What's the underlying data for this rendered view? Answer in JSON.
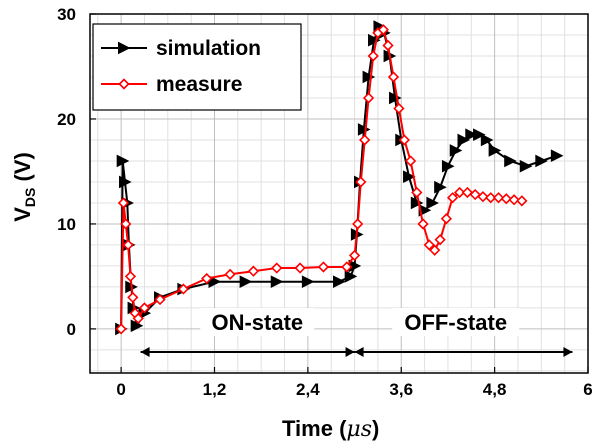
{
  "chart_data": {
    "type": "line",
    "xlabel_text": "Time",
    "xlabel_unit": "μs",
    "ylabel_main": "V",
    "ylabel_sub": "DS",
    "ylabel_unit": " (V)",
    "xlim": [
      -0.4,
      6.0
    ],
    "ylim": [
      -4.2,
      30
    ],
    "x_ticks": [
      0,
      1.2,
      2.4,
      3.6,
      4.8,
      6.0
    ],
    "x_tick_labels": [
      "0",
      "1,2",
      "2,4",
      "3,6",
      "4,8",
      "6"
    ],
    "y_ticks": [
      0,
      10,
      20,
      30
    ],
    "y_tick_labels": [
      "0",
      "10",
      "20",
      "30"
    ],
    "grid": true,
    "legend_position": "top-left",
    "series": [
      {
        "name": "simulation",
        "color": "#000000",
        "marker": "triangle-right",
        "x": [
          0,
          0.02,
          0.05,
          0.08,
          0.1,
          0.13,
          0.16,
          0.2,
          0.3,
          0.5,
          0.8,
          1.2,
          1.6,
          2.0,
          2.4,
          2.8,
          2.95,
          3.0,
          3.03,
          3.07,
          3.12,
          3.18,
          3.25,
          3.32,
          3.38,
          3.45,
          3.52,
          3.6,
          3.7,
          3.8,
          3.9,
          4.0,
          4.1,
          4.2,
          4.3,
          4.4,
          4.5,
          4.6,
          4.7,
          4.8,
          5.0,
          5.2,
          5.4,
          5.6
        ],
        "y": [
          0,
          16,
          14,
          12,
          8,
          4,
          2,
          0.3,
          1.5,
          3,
          3.8,
          4.5,
          4.5,
          4.5,
          4.5,
          4.5,
          5,
          6,
          9,
          14,
          19,
          24,
          27.5,
          28.8,
          28.2,
          26,
          22,
          18,
          14.5,
          12,
          11.3,
          12,
          13.5,
          15.5,
          17,
          18,
          18.5,
          18.5,
          18,
          17,
          16,
          15.5,
          16,
          16.5
        ]
      },
      {
        "name": "measure",
        "color": "#ff0000",
        "marker": "diamond",
        "x": [
          0,
          0.03,
          0.06,
          0.09,
          0.12,
          0.15,
          0.18,
          0.22,
          0.3,
          0.5,
          0.8,
          1.1,
          1.4,
          1.7,
          2.0,
          2.3,
          2.6,
          2.9,
          3.0,
          3.04,
          3.08,
          3.13,
          3.18,
          3.24,
          3.3,
          3.37,
          3.43,
          3.5,
          3.57,
          3.64,
          3.72,
          3.8,
          3.88,
          3.96,
          4.03,
          4.1,
          4.18,
          4.26,
          4.35,
          4.45,
          4.55,
          4.65,
          4.75,
          4.85,
          4.95,
          5.05,
          5.15
        ],
        "y": [
          0,
          12,
          10,
          8,
          5,
          3,
          1.5,
          1,
          2,
          2.8,
          3.8,
          4.8,
          5.2,
          5.5,
          5.8,
          5.8,
          5.9,
          5.9,
          7,
          10,
          14,
          18,
          22,
          26,
          28.2,
          28.5,
          27,
          24,
          21,
          18,
          16,
          13,
          10,
          8,
          7.5,
          8.5,
          10.5,
          12.5,
          13,
          13,
          12.8,
          12.6,
          12.5,
          12.5,
          12.4,
          12.3,
          12.2
        ]
      }
    ],
    "annotations": [
      {
        "text": "ON-state",
        "x_start": 0.25,
        "x_end": 3.0,
        "label_x": 1.75,
        "y": -2.2
      },
      {
        "text": "OFF-state",
        "x_start": 3.0,
        "x_end": 5.8,
        "label_x": 4.3,
        "y": -2.2
      }
    ]
  }
}
